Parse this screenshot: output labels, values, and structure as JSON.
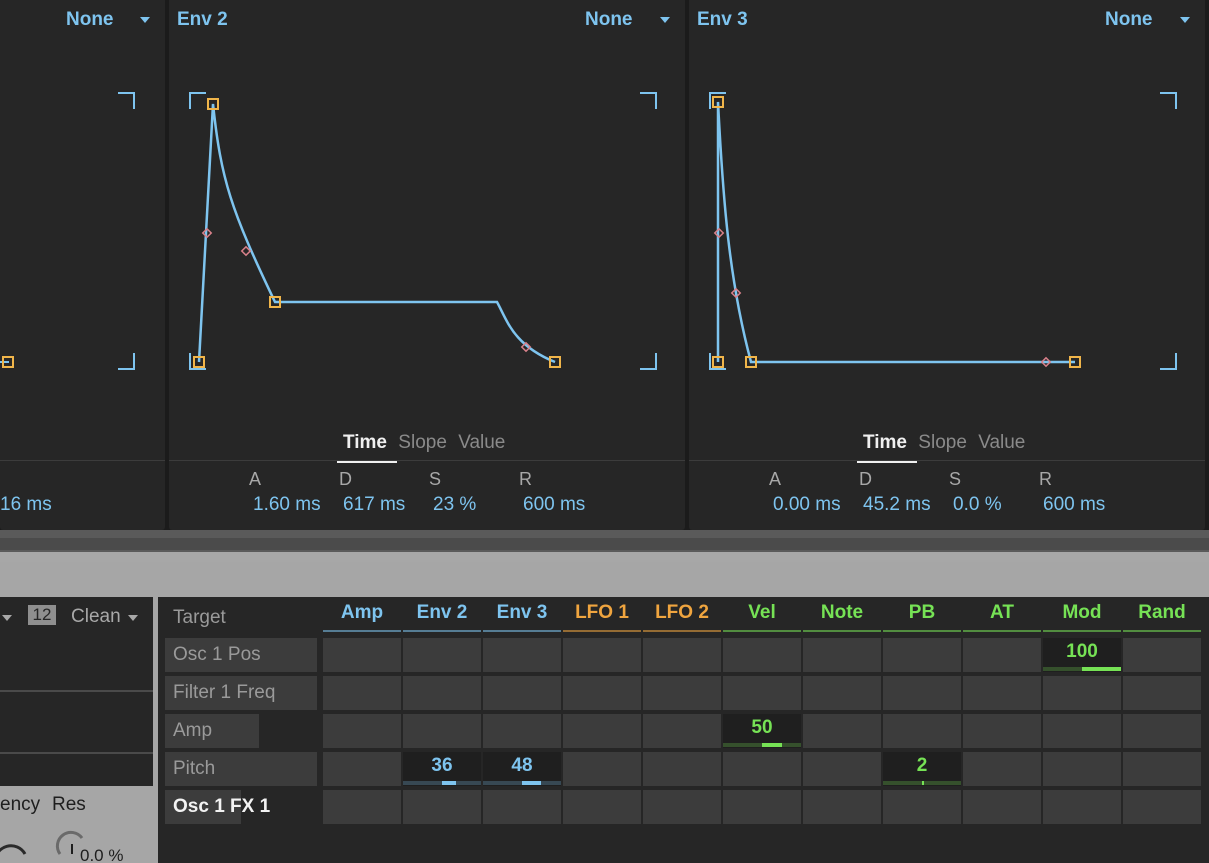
{
  "colors": {
    "envelope_blue": "#7ec4ef",
    "handle_orange": "#f0b54a",
    "midpoint_pink": "#d8808a",
    "env_green": "#76e255",
    "lfo_orange": "#f0a53f"
  },
  "env1_partial": {
    "dest_label": "None",
    "release_value": "16 ms"
  },
  "env2": {
    "title": "Env 2",
    "dest_label": "None",
    "tabs": [
      "Time",
      "Slope",
      "Value"
    ],
    "active_tab": "Time",
    "labels": [
      "A",
      "D",
      "S",
      "R"
    ],
    "values": [
      "1.60 ms",
      "617 ms",
      "23 %",
      "600 ms"
    ]
  },
  "env3": {
    "title": "Env 3",
    "dest_label": "None",
    "tabs": [
      "Time",
      "Slope",
      "Value"
    ],
    "active_tab": "Time",
    "labels": [
      "A",
      "D",
      "S",
      "R"
    ],
    "values": [
      "0.00 ms",
      "45.2 ms",
      "0.0 %",
      "600 ms"
    ]
  },
  "osc": {
    "voice_num": "12",
    "mode": "Clean",
    "freq_label": "ency",
    "res_label": "Res",
    "res_value": "0.0 %"
  },
  "matrix": {
    "target_header": "Target",
    "columns": [
      {
        "label": "Amp",
        "color": "#7ec4ef"
      },
      {
        "label": "Env 2",
        "color": "#7ec4ef"
      },
      {
        "label": "Env 3",
        "color": "#7ec4ef"
      },
      {
        "label": "LFO 1",
        "color": "#f0a53f"
      },
      {
        "label": "LFO 2",
        "color": "#f0a53f"
      },
      {
        "label": "Vel",
        "color": "#76e255"
      },
      {
        "label": "Note",
        "color": "#76e255"
      },
      {
        "label": "PB",
        "color": "#76e255"
      },
      {
        "label": "AT",
        "color": "#76e255"
      },
      {
        "label": "Mod",
        "color": "#76e255"
      },
      {
        "label": "Rand",
        "color": "#76e255"
      }
    ],
    "rows": [
      {
        "label": "Osc 1 Pos",
        "selected": false
      },
      {
        "label": "Filter 1 Freq",
        "selected": false
      },
      {
        "label": "Amp",
        "selected": false
      },
      {
        "label": "Pitch",
        "selected": false
      },
      {
        "label": "Osc 1 FX 1",
        "selected": true
      }
    ],
    "cells": [
      {
        "row": 0,
        "col": 9,
        "value": "100",
        "amount": 1.0
      },
      {
        "row": 2,
        "col": 5,
        "value": "50",
        "amount": 0.5
      },
      {
        "row": 3,
        "col": 1,
        "value": "36",
        "amount": 0.36
      },
      {
        "row": 3,
        "col": 2,
        "value": "48",
        "amount": 0.48
      },
      {
        "row": 3,
        "col": 7,
        "value": "2",
        "amount": 0.02
      }
    ]
  }
}
